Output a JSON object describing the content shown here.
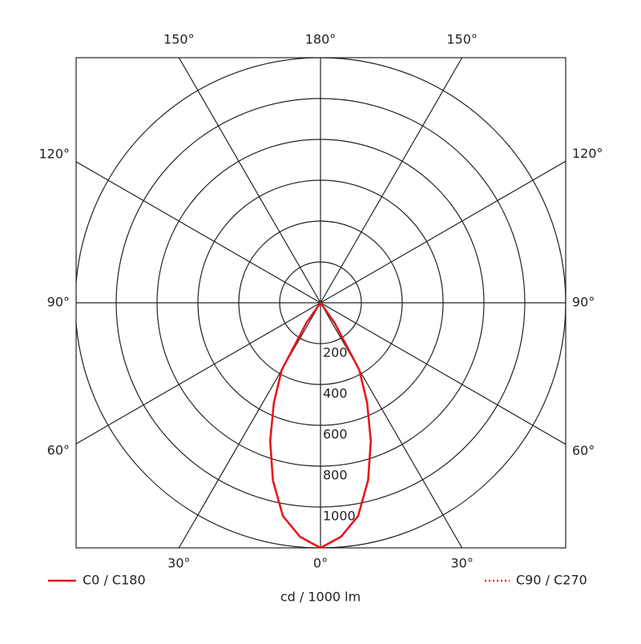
{
  "chart_data": {
    "type": "polar",
    "x_label": "cd / 1000 lm",
    "x": [
      0,
      5,
      10,
      15,
      20,
      25,
      30,
      35,
      40
    ],
    "series": [
      {
        "name": "C0 / C180",
        "color": "#e8141b",
        "dash": "solid",
        "values": [
          1200,
          1150,
          1060,
          900,
          720,
          540,
          380,
          120,
          0
        ]
      },
      {
        "name": "C90 / C270",
        "color": "#e8141b",
        "dash": "dotted",
        "values": [
          1200,
          1150,
          1060,
          900,
          720,
          540,
          380,
          120,
          0
        ]
      }
    ],
    "rlim": [
      0,
      1200
    ],
    "rticks": [
      200,
      400,
      600,
      800,
      1000
    ],
    "angle_ticks": [
      {
        "value": 0,
        "label": "0°"
      },
      {
        "value": 30,
        "label": "30°"
      },
      {
        "value": 60,
        "label": "60°"
      },
      {
        "value": 90,
        "label": "90°"
      },
      {
        "value": 120,
        "label": "120°"
      },
      {
        "value": 150,
        "label": "150°"
      },
      {
        "value": 180,
        "label": "180°"
      }
    ]
  }
}
